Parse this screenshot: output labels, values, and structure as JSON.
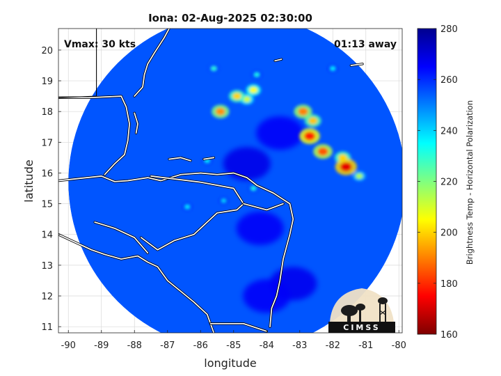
{
  "chart_data": {
    "type": "heatmap",
    "title": "Iona: 02-Aug-2025 02:30:00",
    "xlabel": "longitude",
    "ylabel": "latitude",
    "xlim": [
      -90.3,
      -79.9
    ],
    "ylim": [
      10.8,
      20.7
    ],
    "xticks": [
      -90,
      -89,
      -88,
      -87,
      -86,
      -85,
      -84,
      -83,
      -82,
      -81,
      -80
    ],
    "yticks": [
      11,
      12,
      13,
      14,
      15,
      16,
      17,
      18,
      19,
      20
    ],
    "grid": true,
    "annotations": {
      "vmax": "Vmax: 30 kts",
      "away": "01:13 away"
    },
    "colorbar": {
      "label": "Brightness Temp - Horizontal Polarization",
      "range": [
        160,
        280
      ],
      "ticks": [
        160,
        180,
        200,
        220,
        240,
        260,
        280
      ],
      "colors": [
        "#7f0000",
        "#ff0000",
        "#ff8000",
        "#ffff00",
        "#80ff80",
        "#00ffff",
        "#0080ff",
        "#0000ff",
        "#00008f"
      ]
    },
    "swath": {
      "center_lon": -84.9,
      "center_lat": 15.7,
      "radius_deg": 5.1,
      "base_value": 255
    },
    "cold_features": [
      {
        "lon": -81.6,
        "lat": 16.2,
        "value": 172
      },
      {
        "lon": -82.3,
        "lat": 16.7,
        "value": 185
      },
      {
        "lon": -82.7,
        "lat": 17.2,
        "value": 178
      },
      {
        "lon": -82.9,
        "lat": 18.0,
        "value": 190
      },
      {
        "lon": -82.6,
        "lat": 17.7,
        "value": 198
      },
      {
        "lon": -85.4,
        "lat": 18.0,
        "value": 192
      },
      {
        "lon": -84.9,
        "lat": 18.5,
        "value": 200
      },
      {
        "lon": -84.4,
        "lat": 18.7,
        "value": 205
      },
      {
        "lon": -84.6,
        "lat": 18.4,
        "value": 210
      },
      {
        "lon": -85.6,
        "lat": 19.4,
        "value": 230
      },
      {
        "lon": -84.3,
        "lat": 19.2,
        "value": 232
      },
      {
        "lon": -81.7,
        "lat": 16.5,
        "value": 200
      },
      {
        "lon": -81.2,
        "lat": 15.9,
        "value": 215
      },
      {
        "lon": -82.0,
        "lat": 19.4,
        "value": 235
      },
      {
        "lon": -84.4,
        "lat": 15.5,
        "value": 232
      },
      {
        "lon": -85.8,
        "lat": 16.4,
        "value": 235
      },
      {
        "lon": -86.4,
        "lat": 14.9,
        "value": 236
      },
      {
        "lon": -85.3,
        "lat": 15.1,
        "value": 238
      }
    ],
    "warm_features": [
      {
        "lon": -84.6,
        "lat": 16.3,
        "value": 268
      },
      {
        "lon": -83.6,
        "lat": 17.3,
        "value": 266
      },
      {
        "lon": -84.2,
        "lat": 14.2,
        "value": 266
      },
      {
        "lon": -83.2,
        "lat": 12.4,
        "value": 267
      },
      {
        "lon": -84.0,
        "lat": 12.0,
        "value": 266
      }
    ],
    "coastlines": [
      [
        [
          -90.3,
          15.75
        ],
        [
          -89.0,
          15.9
        ],
        [
          -88.6,
          15.72
        ],
        [
          -88.2,
          15.75
        ],
        [
          -87.6,
          15.85
        ],
        [
          -87.2,
          15.75
        ],
        [
          -86.6,
          15.95
        ],
        [
          -86.0,
          16.0
        ],
        [
          -85.5,
          15.95
        ],
        [
          -85.0,
          16.0
        ],
        [
          -84.6,
          15.85
        ],
        [
          -84.3,
          15.6
        ],
        [
          -83.8,
          15.35
        ],
        [
          -83.3,
          15.0
        ],
        [
          -83.2,
          14.5
        ],
        [
          -83.3,
          14.0
        ],
        [
          -83.5,
          13.2
        ],
        [
          -83.6,
          12.5
        ],
        [
          -83.7,
          12.0
        ],
        [
          -83.85,
          11.6
        ],
        [
          -83.9,
          11.0
        ]
      ],
      [
        [
          -90.3,
          18.45
        ],
        [
          -89.4,
          18.45
        ],
        [
          -88.4,
          18.5
        ],
        [
          -88.25,
          18.15
        ],
        [
          -88.15,
          17.6
        ],
        [
          -88.2,
          17.05
        ],
        [
          -88.3,
          16.6
        ],
        [
          -88.6,
          16.3
        ],
        [
          -88.9,
          15.95
        ]
      ],
      [
        [
          -86.95,
          20.7
        ],
        [
          -87.1,
          20.4
        ],
        [
          -87.4,
          19.9
        ],
        [
          -87.6,
          19.55
        ],
        [
          -87.7,
          19.2
        ],
        [
          -87.75,
          18.8
        ],
        [
          -88.0,
          18.5
        ]
      ],
      [
        [
          -90.3,
          14.0
        ],
        [
          -89.8,
          13.75
        ],
        [
          -89.3,
          13.5
        ],
        [
          -88.9,
          13.35
        ],
        [
          -88.4,
          13.2
        ],
        [
          -87.9,
          13.3
        ],
        [
          -87.6,
          13.1
        ],
        [
          -87.3,
          12.95
        ],
        [
          -87.0,
          12.5
        ],
        [
          -86.6,
          12.15
        ],
        [
          -86.2,
          11.8
        ],
        [
          -85.8,
          11.4
        ],
        [
          -85.7,
          11.1
        ],
        [
          -85.6,
          10.8
        ]
      ],
      [
        [
          -87.5,
          15.9
        ],
        [
          -86.0,
          15.7
        ],
        [
          -85.0,
          15.5
        ],
        [
          -84.7,
          15.0
        ],
        [
          -84.9,
          14.8
        ],
        [
          -85.5,
          14.7
        ],
        [
          -86.2,
          14.0
        ],
        [
          -86.8,
          13.8
        ],
        [
          -87.3,
          13.5
        ],
        [
          -87.8,
          13.9
        ]
      ],
      [
        [
          -89.2,
          14.4
        ],
        [
          -88.6,
          14.2
        ],
        [
          -88.0,
          13.9
        ],
        [
          -87.6,
          13.4
        ]
      ],
      [
        [
          -84.7,
          15.0
        ],
        [
          -84.0,
          14.8
        ],
        [
          -83.5,
          15.0
        ]
      ],
      [
        [
          -85.7,
          11.1
        ],
        [
          -84.7,
          11.1
        ],
        [
          -84.0,
          10.85
        ]
      ]
    ],
    "borders": [
      [
        [
          -89.15,
          20.7
        ],
        [
          -89.15,
          18.5
        ]
      ],
      [
        [
          -89.15,
          18.5
        ],
        [
          -90.3,
          18.45
        ]
      ]
    ],
    "islands": [
      [
        [
          -88.0,
          17.95
        ],
        [
          -87.9,
          17.6
        ],
        [
          -87.95,
          17.3
        ]
      ],
      [
        [
          -86.95,
          16.45
        ],
        [
          -86.6,
          16.5
        ],
        [
          -86.3,
          16.4
        ]
      ],
      [
        [
          -85.9,
          16.45
        ],
        [
          -85.6,
          16.5
        ]
      ],
      [
        [
          -81.45,
          19.5
        ],
        [
          -81.1,
          19.55
        ]
      ],
      [
        [
          -83.75,
          19.65
        ],
        [
          -83.55,
          19.7
        ]
      ]
    ]
  }
}
